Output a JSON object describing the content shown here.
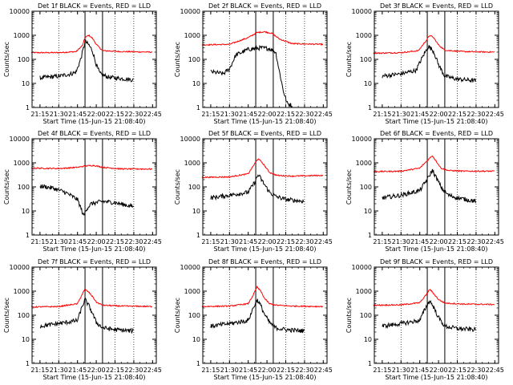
{
  "chart_data": [
    {
      "type": "line",
      "title": "Det 1f BLACK = Events, RED = LLD",
      "xlabel": "",
      "ylabel": "Counts/sec",
      "yscale": "log",
      "ylim": [
        1,
        10000
      ],
      "xlim": [
        "21:08:40",
        "22:48"
      ],
      "grid": "dotted vertical lines at 21:30, 22:15, 22:30",
      "vlines": [
        "21:51",
        "22:05"
      ],
      "x_ticks": [
        "21:15",
        "21:30",
        "21:45",
        "22:00",
        "22:15",
        "22:30",
        "22:45"
      ],
      "y_ticks": [
        "1",
        "10",
        "100",
        "1000",
        "10000"
      ],
      "series": [
        {
          "color": "#ff0000",
          "x": [
            "21:08",
            "21:30",
            "21:44",
            "21:49",
            "21:51",
            "21:54",
            "21:57",
            "22:00",
            "22:05",
            "22:20",
            "22:45"
          ],
          "values": [
            190,
            190,
            210,
            380,
            800,
            1000,
            750,
            420,
            230,
            210,
            200
          ]
        },
        {
          "color": "#000000",
          "x": [
            "21:15",
            "21:30",
            "21:40",
            "21:44",
            "21:48",
            "21:51",
            "21:54",
            "21:57",
            "22:00",
            "22:03",
            "22:10",
            "22:20",
            "22:30"
          ],
          "values": [
            17,
            20,
            25,
            30,
            120,
            550,
            400,
            220,
            60,
            25,
            18,
            16,
            14
          ]
        }
      ]
    },
    {
      "type": "line",
      "title": "Det 2f BLACK = Events, RED = LLD",
      "xlabel": "",
      "ylabel": "Counts/sec",
      "yscale": "log",
      "ylim": [
        1,
        10000
      ],
      "xlim": [
        "21:08:40",
        "22:48"
      ],
      "grid": "dotted vertical lines at 21:30, 22:15, 22:30",
      "vlines": [
        "21:51",
        "22:05"
      ],
      "x_ticks": [
        "21:15",
        "21:30",
        "21:45",
        "22:00",
        "22:15",
        "22:30",
        "22:45"
      ],
      "y_ticks": [
        "1",
        "10",
        "100",
        "1000",
        "10000"
      ],
      "series": [
        {
          "color": "#ff0000",
          "x": [
            "21:08",
            "21:30",
            "21:45",
            "21:52",
            "21:58",
            "22:04",
            "22:10",
            "22:20",
            "22:45"
          ],
          "values": [
            400,
            420,
            800,
            1300,
            1400,
            1200,
            700,
            450,
            420
          ]
        },
        {
          "color": "#000000",
          "x": [
            "21:15",
            "21:20",
            "21:25",
            "21:30",
            "21:35",
            "21:45",
            "21:55",
            "22:02",
            "22:07",
            "22:10",
            "22:13",
            "22:16",
            "22:20"
          ],
          "values": [
            30,
            28,
            25,
            40,
            150,
            260,
            300,
            280,
            200,
            30,
            5,
            1.5,
            1.2
          ]
        }
      ]
    },
    {
      "type": "line",
      "title": "Det 3f BLACK = Events, RED = LLD",
      "xlabel": "",
      "ylabel": "Counts/sec",
      "yscale": "log",
      "ylim": [
        1,
        10000
      ],
      "xlim": [
        "21:08:40",
        "22:48"
      ],
      "grid": "dotted vertical lines at 21:30, 22:15, 22:30",
      "vlines": [
        "21:51",
        "22:05"
      ],
      "x_ticks": [
        "21:15",
        "21:30",
        "21:45",
        "22:00",
        "22:15",
        "22:30",
        "22:45"
      ],
      "y_ticks": [
        "1",
        "10",
        "100",
        "1000",
        "10000"
      ],
      "series": [
        {
          "color": "#ff0000",
          "x": [
            "21:08",
            "21:30",
            "21:44",
            "21:50",
            "21:53",
            "21:56",
            "22:00",
            "22:05",
            "22:20",
            "22:45"
          ],
          "values": [
            180,
            190,
            230,
            600,
            1000,
            800,
            400,
            240,
            210,
            200
          ]
        },
        {
          "color": "#000000",
          "x": [
            "21:15",
            "21:30",
            "21:42",
            "21:48",
            "21:52",
            "21:56",
            "22:00",
            "22:05",
            "22:15",
            "22:30"
          ],
          "values": [
            20,
            25,
            35,
            150,
            350,
            220,
            60,
            20,
            15,
            13
          ]
        }
      ]
    },
    {
      "type": "line",
      "title": "Det 4f BLACK = Events, RED = LLD",
      "xlabel": "",
      "ylabel": "Counts/sec",
      "yscale": "log",
      "ylim": [
        1,
        10000
      ],
      "xlim": [
        "21:08:40",
        "22:48"
      ],
      "grid": "dotted vertical lines at 21:30, 22:15, 22:30",
      "vlines": [
        "21:51",
        "22:05"
      ],
      "x_ticks": [
        "21:15",
        "21:30",
        "21:45",
        "22:00",
        "22:15",
        "22:30",
        "22:45"
      ],
      "y_ticks": [
        "1",
        "10",
        "100",
        "1000",
        "10000"
      ],
      "series": [
        {
          "color": "#ff0000",
          "x": [
            "21:08",
            "21:30",
            "21:45",
            "21:52",
            "21:58",
            "22:05",
            "22:20",
            "22:45"
          ],
          "values": [
            600,
            580,
            650,
            750,
            780,
            650,
            560,
            550
          ]
        },
        {
          "color": "#000000",
          "x": [
            "21:15",
            "21:25",
            "21:35",
            "21:45",
            "21:48",
            "21:50",
            "21:52",
            "21:56",
            "22:05",
            "22:15",
            "22:30"
          ],
          "values": [
            110,
            90,
            60,
            30,
            12,
            6,
            12,
            20,
            25,
            22,
            15
          ]
        }
      ]
    },
    {
      "type": "line",
      "title": "Det 5f BLACK = Events, RED = LLD",
      "xlabel": "",
      "ylabel": "Counts/sec",
      "yscale": "log",
      "ylim": [
        1,
        10000
      ],
      "xlim": [
        "21:08:40",
        "22:48"
      ],
      "grid": "dotted vertical lines at 21:30, 22:15, 22:30",
      "vlines": [
        "21:51",
        "22:05"
      ],
      "x_ticks": [
        "21:15",
        "21:30",
        "21:45",
        "22:00",
        "22:15",
        "22:30",
        "22:45"
      ],
      "y_ticks": [
        "1",
        "10",
        "100",
        "1000",
        "10000"
      ],
      "series": [
        {
          "color": "#ff0000",
          "x": [
            "21:08",
            "21:30",
            "21:45",
            "21:50",
            "21:53",
            "21:57",
            "22:02",
            "22:08",
            "22:20",
            "22:45"
          ],
          "values": [
            250,
            260,
            350,
            900,
            1500,
            900,
            400,
            300,
            280,
            300
          ]
        },
        {
          "color": "#000000",
          "x": [
            "21:15",
            "21:30",
            "21:45",
            "21:50",
            "21:53",
            "21:57",
            "22:02",
            "22:07",
            "22:15",
            "22:30"
          ],
          "values": [
            35,
            45,
            60,
            150,
            320,
            150,
            60,
            40,
            30,
            25
          ]
        }
      ]
    },
    {
      "type": "line",
      "title": "Det 6f BLACK = Events, RED = LLD",
      "xlabel": "",
      "ylabel": "Counts/sec",
      "yscale": "log",
      "ylim": [
        1,
        10000
      ],
      "xlim": [
        "21:08:40",
        "22:48"
      ],
      "grid": "dotted vertical lines at 21:30, 22:15, 22:30",
      "vlines": [
        "21:51",
        "22:05"
      ],
      "x_ticks": [
        "21:15",
        "21:30",
        "21:45",
        "22:00",
        "22:15",
        "22:30",
        "22:45"
      ],
      "y_ticks": [
        "1",
        "10",
        "100",
        "1000",
        "10000"
      ],
      "series": [
        {
          "color": "#ff0000",
          "x": [
            "21:08",
            "21:30",
            "21:45",
            "21:52",
            "21:55",
            "21:58",
            "22:02",
            "22:08",
            "22:20",
            "22:45"
          ],
          "values": [
            430,
            450,
            600,
            1400,
            2000,
            1200,
            600,
            480,
            450,
            450
          ]
        },
        {
          "color": "#000000",
          "x": [
            "21:15",
            "21:30",
            "21:45",
            "21:52",
            "21:55",
            "21:58",
            "22:03",
            "22:08",
            "22:15",
            "22:30"
          ],
          "values": [
            35,
            45,
            70,
            250,
            500,
            250,
            80,
            45,
            35,
            25
          ]
        }
      ]
    },
    {
      "type": "line",
      "title": "Det 7f BLACK = Events, RED = LLD",
      "xlabel": "",
      "ylabel": "Counts/sec",
      "yscale": "log",
      "ylim": [
        1,
        10000
      ],
      "xlim": [
        "21:08:40",
        "22:48"
      ],
      "grid": "dotted vertical lines at 21:30, 22:15, 22:30",
      "vlines": [
        "21:51",
        "22:05"
      ],
      "x_ticks": [
        "21:15",
        "21:30",
        "21:45",
        "22:00",
        "22:15",
        "22:30",
        "22:45"
      ],
      "y_ticks": [
        "1",
        "10",
        "100",
        "1000",
        "10000"
      ],
      "series": [
        {
          "color": "#ff0000",
          "x": [
            "21:08",
            "21:30",
            "21:45",
            "21:49",
            "21:51",
            "21:54",
            "21:57",
            "22:00",
            "22:05",
            "22:20",
            "22:45"
          ],
          "values": [
            220,
            230,
            300,
            800,
            1200,
            900,
            600,
            350,
            260,
            240,
            230
          ]
        },
        {
          "color": "#000000",
          "x": [
            "21:15",
            "21:30",
            "21:45",
            "21:49",
            "21:51",
            "21:54",
            "21:57",
            "22:00",
            "22:05",
            "22:15",
            "22:30"
          ],
          "values": [
            35,
            45,
            60,
            250,
            450,
            250,
            120,
            50,
            30,
            25,
            22
          ]
        }
      ]
    },
    {
      "type": "line",
      "title": "Det 8f BLACK = Events, RED = LLD",
      "xlabel": "",
      "ylabel": "Counts/sec",
      "yscale": "log",
      "ylim": [
        1,
        10000
      ],
      "xlim": [
        "21:08:40",
        "22:48"
      ],
      "grid": "dotted vertical lines at 21:30, 22:15, 22:30",
      "vlines": [
        "21:51",
        "22:05"
      ],
      "x_ticks": [
        "21:15",
        "21:30",
        "21:45",
        "22:00",
        "22:15",
        "22:30",
        "22:45"
      ],
      "y_ticks": [
        "1",
        "10",
        "100",
        "1000",
        "10000"
      ],
      "series": [
        {
          "color": "#ff0000",
          "x": [
            "21:08",
            "21:30",
            "21:45",
            "21:49",
            "21:52",
            "21:55",
            "21:58",
            "22:02",
            "22:08",
            "22:20",
            "22:45"
          ],
          "values": [
            230,
            240,
            300,
            700,
            1500,
            1000,
            500,
            300,
            260,
            240,
            230
          ]
        },
        {
          "color": "#000000",
          "x": [
            "21:15",
            "21:30",
            "21:45",
            "21:49",
            "21:52",
            "21:55",
            "21:58",
            "22:02",
            "22:07",
            "22:15",
            "22:30"
          ],
          "values": [
            35,
            45,
            60,
            200,
            450,
            250,
            110,
            50,
            30,
            25,
            22
          ]
        }
      ]
    },
    {
      "type": "line",
      "title": "Det 9f BLACK = Events, RED = LLD",
      "xlabel": "",
      "ylabel": "Counts/sec",
      "yscale": "log",
      "ylim": [
        1,
        10000
      ],
      "xlim": [
        "21:08:40",
        "22:48"
      ],
      "grid": "dotted vertical lines at 21:30, 22:15, 22:30",
      "vlines": [
        "21:51",
        "22:05"
      ],
      "x_ticks": [
        "21:15",
        "21:30",
        "21:45",
        "22:00",
        "22:15",
        "22:30",
        "22:45"
      ],
      "y_ticks": [
        "1",
        "10",
        "100",
        "1000",
        "10000"
      ],
      "series": [
        {
          "color": "#ff0000",
          "x": [
            "21:08",
            "21:30",
            "21:45",
            "21:50",
            "21:53",
            "21:56",
            "22:00",
            "22:05",
            "22:20",
            "22:45"
          ],
          "values": [
            260,
            270,
            330,
            700,
            1200,
            800,
            450,
            320,
            290,
            280
          ]
        },
        {
          "color": "#000000",
          "x": [
            "21:15",
            "21:30",
            "21:45",
            "21:50",
            "21:53",
            "21:56",
            "22:00",
            "22:05",
            "22:15",
            "22:30"
          ],
          "values": [
            35,
            45,
            60,
            220,
            400,
            220,
            80,
            35,
            28,
            25
          ]
        }
      ]
    }
  ],
  "xlabel_text": "Start Time (15-Jun-15 21:08:40)"
}
